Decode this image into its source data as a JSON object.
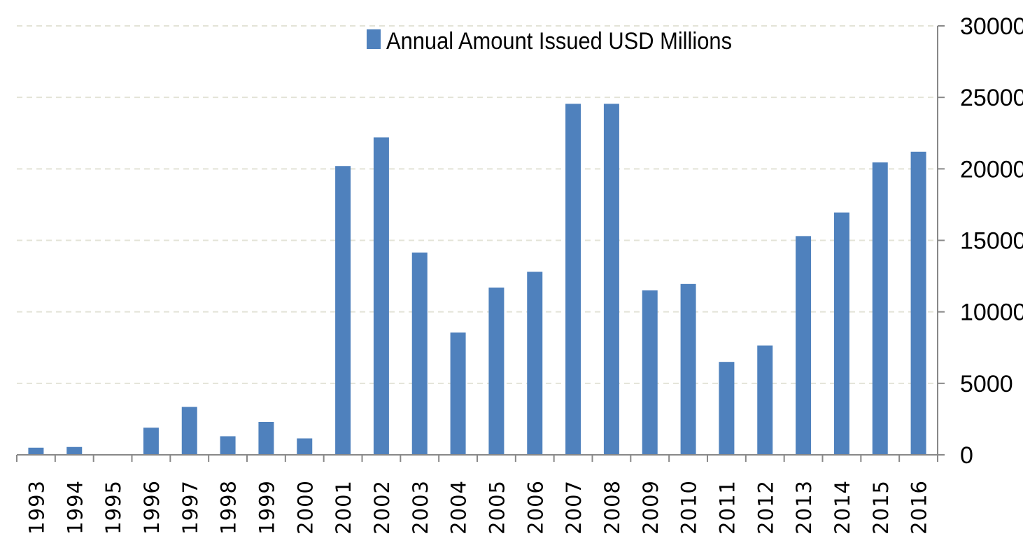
{
  "chart_data": {
    "type": "bar",
    "title": "",
    "xlabel": "",
    "ylabel": "",
    "categories": [
      "1993",
      "1994",
      "1995",
      "1996",
      "1997",
      "1998",
      "1999",
      "2000",
      "2001",
      "2002",
      "2003",
      "2004",
      "2005",
      "2006",
      "2007",
      "2008",
      "2009",
      "2010",
      "2011",
      "2012",
      "2013",
      "2014",
      "2015",
      "2016"
    ],
    "series": [
      {
        "name": "Annual Amount Issued USD Millions",
        "values": [
          500,
          550,
          0,
          1900,
          3350,
          1300,
          2300,
          1150,
          20200,
          22200,
          14150,
          8550,
          11700,
          12800,
          24550,
          24550,
          11500,
          11950,
          6500,
          7650,
          15300,
          16950,
          20450,
          21200
        ]
      }
    ],
    "ylim": [
      0,
      30000
    ],
    "yticks": [
      0,
      5000,
      10000,
      15000,
      20000,
      25000,
      30000
    ],
    "y_axis_position": "right",
    "grid": "horizontal dashed",
    "legend_position": "top-center",
    "colors": {
      "bar": "#4f81bd",
      "grid": "#e3e3d7",
      "axis": "#888888"
    }
  }
}
